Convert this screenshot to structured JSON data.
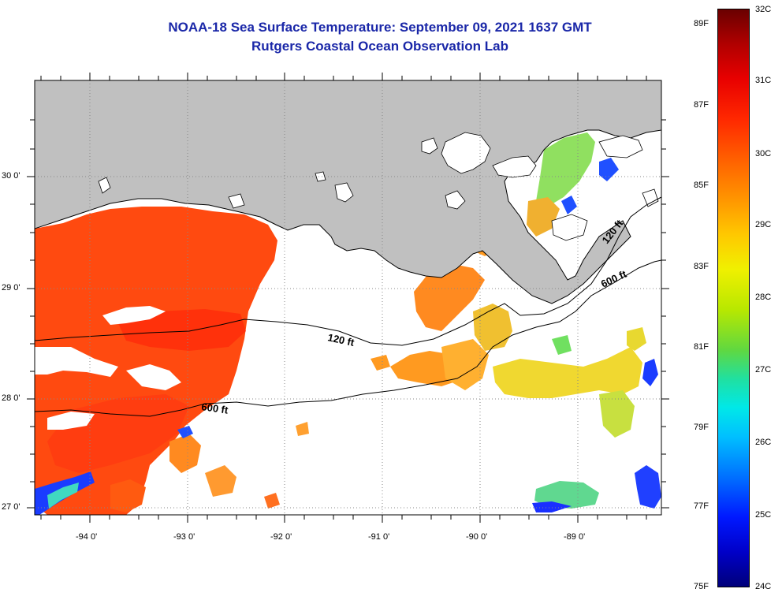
{
  "title": {
    "line1": "NOAA-18 Sea Surface Temperature:  September 09, 2021 1637 GMT",
    "line2": "Rutgers Coastal Ocean Observation Lab"
  },
  "map": {
    "lon_range": [
      -94.55,
      -88.2
    ],
    "lat_range": [
      26.95,
      30.85
    ],
    "lon_ticks": [
      {
        "value": -94,
        "label": "-94 0'"
      },
      {
        "value": -93,
        "label": "-93 0'"
      },
      {
        "value": -92,
        "label": "-92 0'"
      },
      {
        "value": -91,
        "label": "-91 0'"
      },
      {
        "value": -90,
        "label": "-90 0'"
      },
      {
        "value": -89,
        "label": "-89 0'"
      }
    ],
    "lat_ticks": [
      {
        "value": 30,
        "label": "30 0'"
      },
      {
        "value": 29,
        "label": "29 0'"
      },
      {
        "value": 28,
        "label": "28 0'"
      },
      {
        "value": 27,
        "label": "27 0'"
      }
    ],
    "contour_labels": [
      {
        "text": "120 ft"
      },
      {
        "text": "120 ft"
      },
      {
        "text": "600 ft"
      },
      {
        "text": "600 ft"
      }
    ],
    "colors": {
      "land": "#c0c0c0",
      "sst_hot": "#ff4a10",
      "sst_warm": "#ff9a20",
      "sst_mild": "#f0d830",
      "sst_cool": "#70e060",
      "sst_cold": "#1030ff"
    }
  },
  "colorbar": {
    "celsius": [
      "32C",
      "31C",
      "30C",
      "29C",
      "28C",
      "27C",
      "26C",
      "25C",
      "24C"
    ],
    "fahrenheit": [
      "89F",
      "87F",
      "85F",
      "83F",
      "81F",
      "79F",
      "77F",
      "75F"
    ]
  }
}
